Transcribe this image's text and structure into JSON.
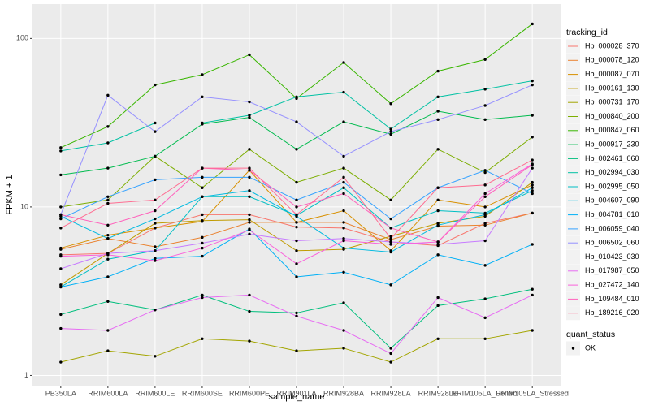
{
  "chart_data": {
    "type": "line",
    "log_scale": true,
    "grid": true,
    "x_label": "sample_name",
    "y_label": "FPKM + 1",
    "categories": [
      "PB350LA",
      "RRIM600LA",
      "RRIM600LE",
      "RRIM600SE",
      "RRIM600PE",
      "RRIM901LA",
      "RRIM928BA",
      "RRIM928LA",
      "RRIM928LE",
      "RRIM105LA_Control",
      "RRIM105LA_Stressed"
    ],
    "ylim": [
      0.87,
      160
    ],
    "yticks": [
      1,
      10,
      100
    ],
    "legend_title": "tracking_id",
    "legend_position": "right",
    "point_legend": {
      "title": "quant_status",
      "levels": [
        "OK"
      ],
      "color": "#000000"
    },
    "series": [
      {
        "name": "Hb_000028_370",
        "color": "#F8766D",
        "values": [
          5.2,
          5.3,
          7.5,
          9,
          9,
          7.6,
          7.5,
          6.2,
          5.9,
          8,
          9.2
        ]
      },
      {
        "name": "Hb_000078_120",
        "color": "#EA8331",
        "values": [
          5.6,
          6.5,
          5.8,
          6.6,
          8.1,
          8.1,
          8.1,
          6.4,
          7.7,
          7.8,
          9.2
        ]
      },
      {
        "name": "Hb_000087_070",
        "color": "#D89000",
        "values": [
          5.7,
          6.8,
          7.5,
          8.2,
          16.5,
          8.1,
          9.5,
          5.5,
          11,
          10,
          13.5
        ]
      },
      {
        "name": "Hb_000161_130",
        "color": "#C09B00",
        "values": [
          3.45,
          5.3,
          8,
          8.3,
          8.4,
          5.5,
          5.6,
          6.7,
          8,
          8.8,
          14
        ]
      },
      {
        "name": "Hb_000731_170",
        "color": "#A3A500",
        "values": [
          1.2,
          1.4,
          1.3,
          1.65,
          1.6,
          1.4,
          1.45,
          1.2,
          1.65,
          1.65,
          1.85
        ]
      },
      {
        "name": "Hb_000840_200",
        "color": "#7CAE00",
        "values": [
          10,
          11,
          20,
          13,
          22,
          14,
          17,
          11,
          22,
          16,
          26
        ]
      },
      {
        "name": "Hb_000847_060",
        "color": "#39B600",
        "values": [
          22.5,
          30,
          53,
          61,
          80,
          44,
          72,
          41,
          64,
          75,
          122
        ]
      },
      {
        "name": "Hb_000917_230",
        "color": "#00BB4E",
        "values": [
          15.5,
          17,
          20,
          31,
          34,
          22,
          32,
          27,
          37,
          33,
          35
        ]
      },
      {
        "name": "Hb_002461_060",
        "color": "#00BF7D",
        "values": [
          2.3,
          2.75,
          2.45,
          3.0,
          2.4,
          2.35,
          2.7,
          1.45,
          2.6,
          2.85,
          3.25
        ]
      },
      {
        "name": "Hb_002994_030",
        "color": "#00C1A3",
        "values": [
          21.5,
          24,
          31.5,
          31.5,
          35,
          45,
          48,
          29,
          45,
          50,
          56
        ]
      },
      {
        "name": "Hb_002995_050",
        "color": "#00BFC4",
        "values": [
          3.35,
          4.9,
          5.5,
          11.5,
          11.5,
          8.9,
          13,
          7.5,
          9.5,
          9.2,
          12.5
        ]
      },
      {
        "name": "Hb_004607_090",
        "color": "#00BAE0",
        "values": [
          8.8,
          6.5,
          8.5,
          11.5,
          12.5,
          8.8,
          5.7,
          5.4,
          7.8,
          9,
          13
        ]
      },
      {
        "name": "Hb_004781_010",
        "color": "#00B0F6",
        "values": [
          3.35,
          3.85,
          4.95,
          5.1,
          7.4,
          3.85,
          4.1,
          3.45,
          5.2,
          4.5,
          6.0
        ]
      },
      {
        "name": "Hb_006059_040",
        "color": "#35A2FF",
        "values": [
          8.5,
          11.5,
          14.5,
          15,
          15,
          11,
          14,
          8.5,
          13,
          16.5,
          12
        ]
      },
      {
        "name": "Hb_006502_060",
        "color": "#9590FF",
        "values": [
          9,
          46,
          28,
          45,
          42,
          32,
          20,
          28,
          33,
          40,
          53
        ]
      },
      {
        "name": "Hb_010423_030",
        "color": "#C77CFF",
        "values": [
          4.3,
          5.3,
          5.5,
          6.1,
          6.9,
          6.3,
          6.5,
          6.2,
          6.0,
          6.3,
          17
        ]
      },
      {
        "name": "Hb_017987_050",
        "color": "#E76BF3",
        "values": [
          1.9,
          1.85,
          2.45,
          2.9,
          3.0,
          2.25,
          1.85,
          1.35,
          2.9,
          2.2,
          3.0
        ]
      },
      {
        "name": "Hb_027472_140",
        "color": "#FA62DB",
        "values": [
          5.1,
          5.2,
          4.8,
          5.7,
          7.3,
          4.6,
          6.3,
          6.0,
          6.2,
          12,
          18
        ]
      },
      {
        "name": "Hb_109484_010",
        "color": "#FF62BC",
        "values": [
          9,
          7.8,
          9.5,
          17,
          16.5,
          10,
          12,
          7.5,
          6.2,
          11.5,
          17.8
        ]
      },
      {
        "name": "Hb_189216_020",
        "color": "#FF6C91",
        "values": [
          7.5,
          10.5,
          11,
          17,
          17,
          9,
          15,
          6.5,
          13,
          13.5,
          19
        ]
      }
    ]
  }
}
